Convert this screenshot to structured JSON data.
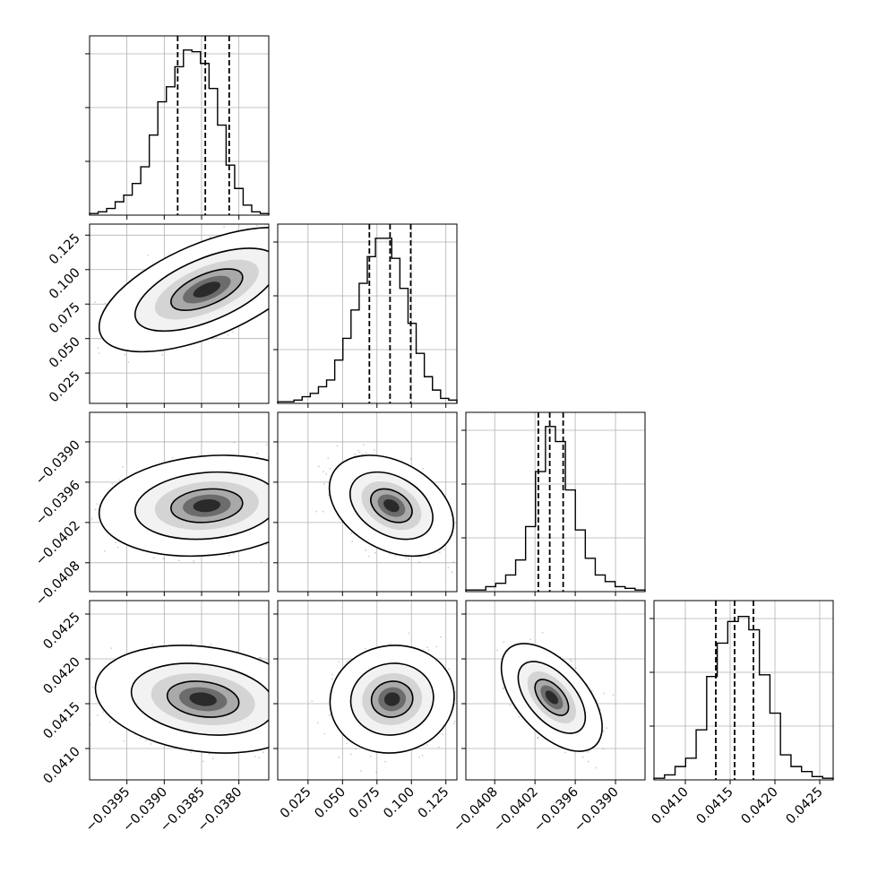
{
  "chart_data": {
    "type": "corner",
    "parameters": [
      {
        "range": [
          -0.04,
          -0.0376
        ],
        "ticks": [
          -0.0395,
          -0.039,
          -0.0385,
          -0.038
        ],
        "tick_labels": [
          "−0.0395",
          "−0.0390",
          "−0.0385",
          "−0.0380"
        ],
        "quantiles": [
          -0.03882,
          -0.03845,
          -0.03813
        ],
        "histogram": [
          0.01,
          0.02,
          0.04,
          0.08,
          0.12,
          0.19,
          0.29,
          0.48,
          0.68,
          0.77,
          0.89,
          0.99,
          0.98,
          0.91,
          0.76,
          0.54,
          0.3,
          0.16,
          0.06,
          0.02,
          0.01
        ]
      },
      {
        "range": [
          0.003,
          0.133
        ],
        "ticks": [
          0.025,
          0.05,
          0.075,
          0.1,
          0.125
        ],
        "tick_labels": [
          "0.025",
          "0.050",
          "0.075",
          "0.100",
          "0.125"
        ],
        "quantiles": [
          0.0695,
          0.0845,
          0.0995
        ],
        "histogram": [
          0.01,
          0.01,
          0.02,
          0.04,
          0.06,
          0.1,
          0.14,
          0.26,
          0.39,
          0.56,
          0.72,
          0.88,
          0.99,
          0.99,
          0.87,
          0.69,
          0.48,
          0.3,
          0.16,
          0.08,
          0.03,
          0.02
        ]
      },
      {
        "range": [
          -0.04123,
          -0.03856
        ],
        "ticks": [
          -0.0408,
          -0.0402,
          -0.0396,
          -0.039
        ],
        "tick_labels": [
          "−0.0408",
          "−0.0402",
          "−0.0396",
          "−0.0390"
        ],
        "quantiles": [
          -0.04015,
          -0.03998,
          -0.03978
        ],
        "histogram": [
          0.01,
          0.01,
          0.03,
          0.05,
          0.1,
          0.19,
          0.39,
          0.72,
          0.99,
          0.9,
          0.61,
          0.37,
          0.2,
          0.1,
          0.06,
          0.03,
          0.02,
          0.01
        ]
      },
      {
        "range": [
          0.04065,
          0.04265
        ],
        "ticks": [
          0.041,
          0.0415,
          0.042,
          0.0425
        ],
        "tick_labels": [
          "0.0410",
          "0.0415",
          "0.0420",
          "0.0425"
        ],
        "quantiles": [
          0.04134,
          0.04155,
          0.04176
        ],
        "histogram": [
          0.01,
          0.03,
          0.08,
          0.13,
          0.3,
          0.62,
          0.82,
          0.95,
          0.98,
          0.9,
          0.63,
          0.4,
          0.15,
          0.08,
          0.05,
          0.02,
          0.01
        ]
      }
    ],
    "pairs": [
      {
        "x": 0,
        "y": 1,
        "center": [
          -0.03843,
          0.0855
        ],
        "sd": [
          0.00048,
          0.015
        ],
        "corr": 0.6
      },
      {
        "x": 0,
        "y": 2,
        "center": [
          -0.03843,
          -0.03995
        ],
        "sd": [
          0.00048,
          0.00025
        ],
        "corr": 0.15
      },
      {
        "x": 1,
        "y": 2,
        "center": [
          0.0855,
          -0.03995
        ],
        "sd": [
          0.015,
          0.00025
        ],
        "corr": -0.35
      },
      {
        "x": 0,
        "y": 3,
        "center": [
          -0.03848,
          0.04155
        ],
        "sd": [
          0.00048,
          0.0002
        ],
        "corr": -0.2
      },
      {
        "x": 1,
        "y": 3,
        "center": [
          0.086,
          0.04155
        ],
        "sd": [
          0.015,
          0.0002
        ],
        "corr": 0.05
      },
      {
        "x": 2,
        "y": 3,
        "center": [
          -0.03995,
          0.04157
        ],
        "sd": [
          0.00025,
          0.0002
        ],
        "corr": -0.55
      }
    ],
    "contour_levels": [
      0.393,
      0.865,
      0.989
    ],
    "grid": true
  }
}
